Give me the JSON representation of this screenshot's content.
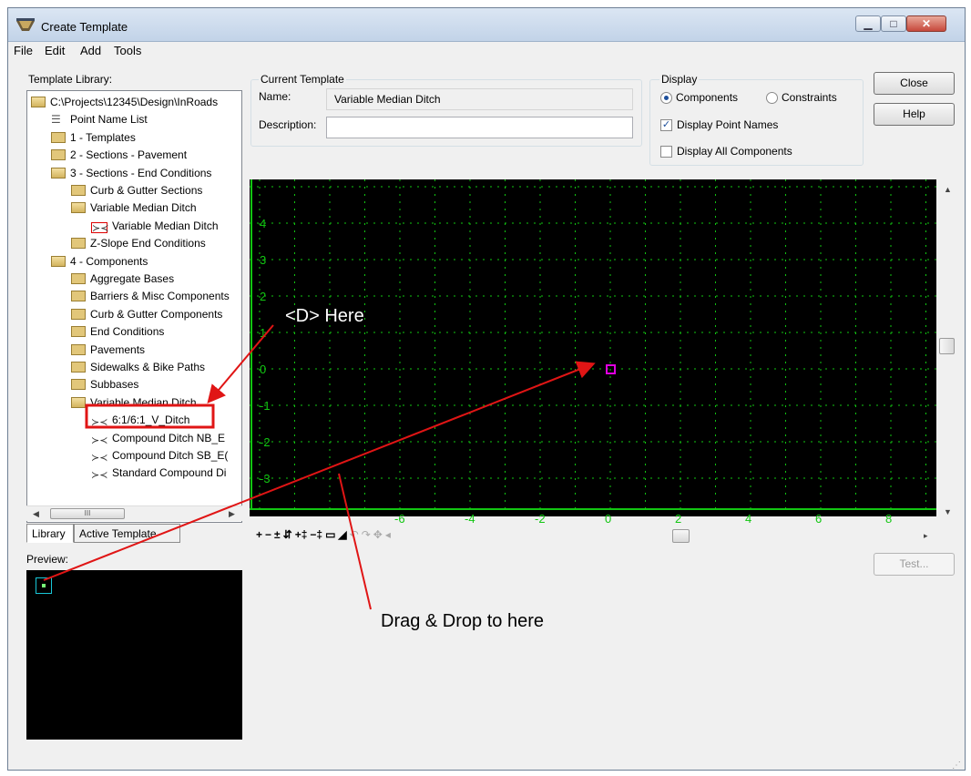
{
  "window": {
    "title": "Create Template"
  },
  "menu": [
    "File",
    "Edit",
    "Add",
    "Tools"
  ],
  "library": {
    "label": "Template Library:",
    "items": [
      {
        "text": "C:\\Projects\\12345\\Design\\InRoads",
        "kind": "folder-open",
        "level": 0
      },
      {
        "text": "Point Name List",
        "kind": "list",
        "level": 1
      },
      {
        "text": "1 - Templates",
        "kind": "folder",
        "level": 1
      },
      {
        "text": "2 - Sections - Pavement",
        "kind": "folder",
        "level": 1
      },
      {
        "text": "3 - Sections - End Conditions",
        "kind": "folder-open",
        "level": 1
      },
      {
        "text": "Curb & Gutter Sections",
        "kind": "folder",
        "level": 2
      },
      {
        "text": "Variable Median Ditch",
        "kind": "folder-open",
        "level": 2
      },
      {
        "text": "Variable Median Ditch",
        "kind": "template-boxed",
        "level": 3
      },
      {
        "text": "Z-Slope End Conditions",
        "kind": "folder",
        "level": 2
      },
      {
        "text": "4 - Components",
        "kind": "folder-open",
        "level": 1
      },
      {
        "text": "Aggregate Bases",
        "kind": "folder",
        "level": 2
      },
      {
        "text": "Barriers & Misc Components",
        "kind": "folder",
        "level": 2
      },
      {
        "text": "Curb & Gutter Components",
        "kind": "folder",
        "level": 2
      },
      {
        "text": "End Conditions",
        "kind": "folder",
        "level": 2
      },
      {
        "text": "Pavements",
        "kind": "folder",
        "level": 2
      },
      {
        "text": "Sidewalks & Bike Paths",
        "kind": "folder",
        "level": 2
      },
      {
        "text": "Subbases",
        "kind": "folder",
        "level": 2
      },
      {
        "text": "Variable Median Ditch",
        "kind": "folder-open",
        "level": 2
      },
      {
        "text": "6:1/6:1_V_Ditch",
        "kind": "template",
        "level": 3
      },
      {
        "text": "Compound Ditch NB_E",
        "kind": "template",
        "level": 3
      },
      {
        "text": "Compound Ditch SB_E(",
        "kind": "template",
        "level": 3
      },
      {
        "text": "Standard Compound Di",
        "kind": "template",
        "level": 3
      }
    ],
    "scroll_thumb_glyph": "III"
  },
  "tabs": {
    "library": "Library",
    "active_template": "Active Template"
  },
  "preview": {
    "label": "Preview:"
  },
  "current_template": {
    "group_label": "Current Template",
    "name_label": "Name:",
    "name_value": "Variable Median Ditch",
    "description_label": "Description:",
    "description_value": ""
  },
  "display": {
    "group_label": "Display",
    "components_label": "Components",
    "constraints_label": "Constraints",
    "selected": "components",
    "display_point_names_label": "Display Point Names",
    "display_point_names": true,
    "display_all_components_label": "Display All Components",
    "display_all_components": false
  },
  "buttons": {
    "close": "Close",
    "help": "Help",
    "test": "Test..."
  },
  "canvas": {
    "x_ticks": [
      "-6",
      "-4",
      "-2",
      "0",
      "2",
      "4",
      "6",
      "8"
    ],
    "y_ticks": [
      "4",
      "3",
      "2",
      "1",
      "0",
      "-1",
      "-2",
      "-3"
    ],
    "grid_color": "#12c612",
    "marker_color": "#e000e0"
  },
  "annotations": {
    "d_here": "<D> Here",
    "drag_drop": "Drag & Drop to here",
    "color": "#e01515"
  }
}
